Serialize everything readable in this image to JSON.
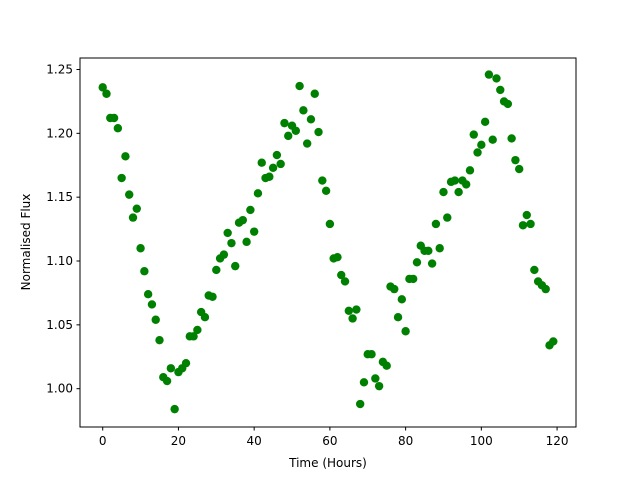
{
  "chart_data": {
    "type": "scatter",
    "xlabel": "Time (Hours)",
    "ylabel": "Normalised Flux",
    "series": [
      {
        "color": "#008000",
        "x": [
          0,
          1,
          2,
          3,
          4,
          5,
          6,
          7,
          8,
          9,
          10,
          11,
          12,
          13,
          14,
          15,
          16,
          17,
          18,
          19,
          20,
          21,
          22,
          23,
          24,
          25,
          26,
          27,
          28,
          29,
          30,
          31,
          32,
          33,
          34,
          35,
          36,
          37,
          38,
          39,
          40,
          41,
          42,
          43,
          44,
          45,
          46,
          47,
          48,
          49,
          50,
          51,
          52,
          53,
          54,
          55,
          56,
          57,
          58,
          59,
          60,
          61,
          62,
          63,
          64,
          65,
          66,
          67,
          68,
          69,
          70,
          71,
          72,
          73,
          74,
          75,
          76,
          77,
          78,
          79,
          80,
          81,
          82,
          83,
          84,
          85,
          86,
          87,
          88,
          89,
          90,
          91,
          92,
          93,
          94,
          95,
          96,
          97,
          98,
          99,
          100,
          101,
          102,
          103,
          104,
          105,
          106,
          107,
          108,
          109,
          110,
          111,
          112,
          113,
          114,
          115,
          116,
          117,
          118,
          119
        ],
        "values": [
          1.236,
          1.231,
          1.212,
          1.212,
          1.204,
          1.165,
          1.182,
          1.152,
          1.134,
          1.141,
          1.11,
          1.092,
          1.074,
          1.066,
          1.054,
          1.038,
          1.009,
          1.006,
          1.016,
          0.984,
          1.013,
          1.016,
          1.02,
          1.041,
          1.041,
          1.046,
          1.06,
          1.056,
          1.073,
          1.072,
          1.093,
          1.102,
          1.105,
          1.122,
          1.114,
          1.096,
          1.13,
          1.132,
          1.115,
          1.14,
          1.123,
          1.153,
          1.177,
          1.165,
          1.166,
          1.173,
          1.183,
          1.176,
          1.208,
          1.198,
          1.206,
          1.202,
          1.237,
          1.218,
          1.192,
          1.211,
          1.231,
          1.201,
          1.163,
          1.155,
          1.129,
          1.102,
          1.103,
          1.089,
          1.084,
          1.061,
          1.055,
          1.062,
          0.988,
          1.005,
          1.027,
          1.027,
          1.008,
          1.002,
          1.021,
          1.018,
          1.08,
          1.078,
          1.056,
          1.07,
          1.045,
          1.086,
          1.086,
          1.099,
          1.112,
          1.108,
          1.108,
          1.098,
          1.129,
          1.11,
          1.154,
          1.134,
          1.162,
          1.163,
          1.154,
          1.163,
          1.16,
          1.171,
          1.199,
          1.185,
          1.191,
          1.209,
          1.246,
          1.195,
          1.243,
          1.234,
          1.225,
          1.223,
          1.196,
          1.179,
          1.172,
          1.128,
          1.136,
          1.129,
          1.093,
          1.084,
          1.081,
          1.078,
          1.034,
          1.037
        ]
      }
    ],
    "xlim": [
      -6,
      125
    ],
    "xticks": [
      0,
      20,
      40,
      60,
      80,
      100,
      120
    ],
    "ylim": [
      0.97,
      1.259
    ],
    "yticks": [
      {
        "value": 1.0,
        "label": "1.00"
      },
      {
        "value": 1.05,
        "label": "1.05"
      },
      {
        "value": 1.1,
        "label": "1.10"
      },
      {
        "value": 1.15,
        "label": "1.15"
      },
      {
        "value": 1.2,
        "label": "1.20"
      },
      {
        "value": 1.25,
        "label": "1.25"
      }
    ],
    "grid": false
  }
}
